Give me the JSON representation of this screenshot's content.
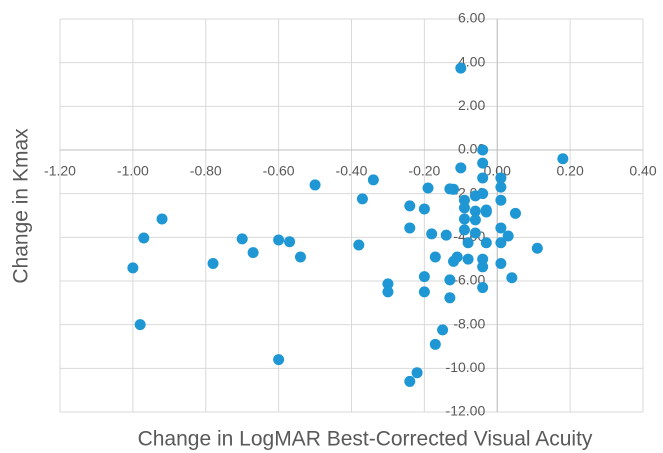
{
  "chart_data": {
    "type": "scatter",
    "x_label": "Change in LogMAR Best-Corrected Visual Acuity",
    "y_label": "Change in Kmax",
    "color": "#1f97d4",
    "grid": true,
    "xlim": [
      -1.2,
      0.4
    ],
    "ylim": [
      -12,
      6
    ],
    "xticks": [
      {
        "value": -1.2,
        "label": "-1.20"
      },
      {
        "value": -1.0,
        "label": "-1.00"
      },
      {
        "value": -0.8,
        "label": "-0.80"
      },
      {
        "value": -0.6,
        "label": "-0.60"
      },
      {
        "value": -0.4,
        "label": "-0.40"
      },
      {
        "value": -0.2,
        "label": "-0.20"
      },
      {
        "value": 0,
        "label": "0.00"
      },
      {
        "value": 0.2,
        "label": "0.20"
      },
      {
        "value": 0.4,
        "label": "0.40"
      }
    ],
    "yticks": [
      {
        "value": 6,
        "label": "6.00"
      },
      {
        "value": 4,
        "label": "4.00"
      },
      {
        "value": 2,
        "label": "2.00"
      },
      {
        "value": 0,
        "label": "0.00"
      },
      {
        "value": -2,
        "label": "-2.00"
      },
      {
        "value": -4,
        "label": "-4.00"
      },
      {
        "value": -6,
        "label": "-6.00"
      },
      {
        "value": -8,
        "label": "-8.00"
      },
      {
        "value": -10,
        "label": "-10.00"
      },
      {
        "value": -12,
        "label": "-12.00"
      }
    ],
    "x": [
      -0.1,
      -1.0,
      -0.97,
      -0.92,
      -0.98,
      -0.78,
      -0.7,
      -0.67,
      -0.6,
      -0.57,
      -0.54,
      -0.6,
      -0.5,
      -0.34,
      -0.37,
      -0.38,
      -0.24,
      -0.24,
      -0.3,
      -0.3,
      -0.2,
      -0.19,
      -0.18,
      -0.17,
      -0.2,
      -0.2,
      -0.24,
      -0.22,
      -0.17,
      -0.15,
      -0.13,
      -0.13,
      -0.14,
      -0.12,
      -0.11,
      -0.13,
      -0.12,
      -0.1,
      -0.09,
      -0.09,
      -0.09,
      -0.09,
      -0.08,
      -0.08,
      -0.06,
      -0.06,
      -0.06,
      -0.06,
      -0.04,
      -0.04,
      -0.04,
      -0.04,
      -0.03,
      -0.04,
      -0.04,
      -0.04,
      -0.03,
      -0.03,
      0.01,
      0.01,
      0.01,
      0.01,
      0.01,
      0.03,
      0.01,
      0.05,
      0.04,
      0.11,
      0.18
    ],
    "values": [
      3.75,
      -5.4,
      -4.03,
      -3.16,
      -8.0,
      -5.2,
      -4.07,
      -4.7,
      -4.12,
      -4.2,
      -4.9,
      -9.6,
      -1.6,
      -1.37,
      -2.24,
      -4.35,
      -2.56,
      -3.57,
      -6.13,
      -6.5,
      -2.7,
      -1.74,
      -3.84,
      -4.9,
      -5.8,
      -6.5,
      -10.6,
      -10.2,
      -8.9,
      -8.24,
      -6.77,
      -5.95,
      -3.9,
      -5.1,
      -4.9,
      -1.78,
      -1.8,
      -0.82,
      -2.3,
      -2.65,
      -3.16,
      -3.66,
      -4.25,
      -5.0,
      -2.1,
      -2.8,
      -3.2,
      -3.8,
      0.0,
      -0.6,
      -1.28,
      -2.0,
      -2.84,
      -5.0,
      -5.35,
      -6.3,
      -4.25,
      -2.75,
      -1.28,
      -1.7,
      -2.3,
      -3.57,
      -4.25,
      -3.94,
      -5.2,
      -2.9,
      -5.85,
      -4.5,
      -0.4
    ]
  }
}
